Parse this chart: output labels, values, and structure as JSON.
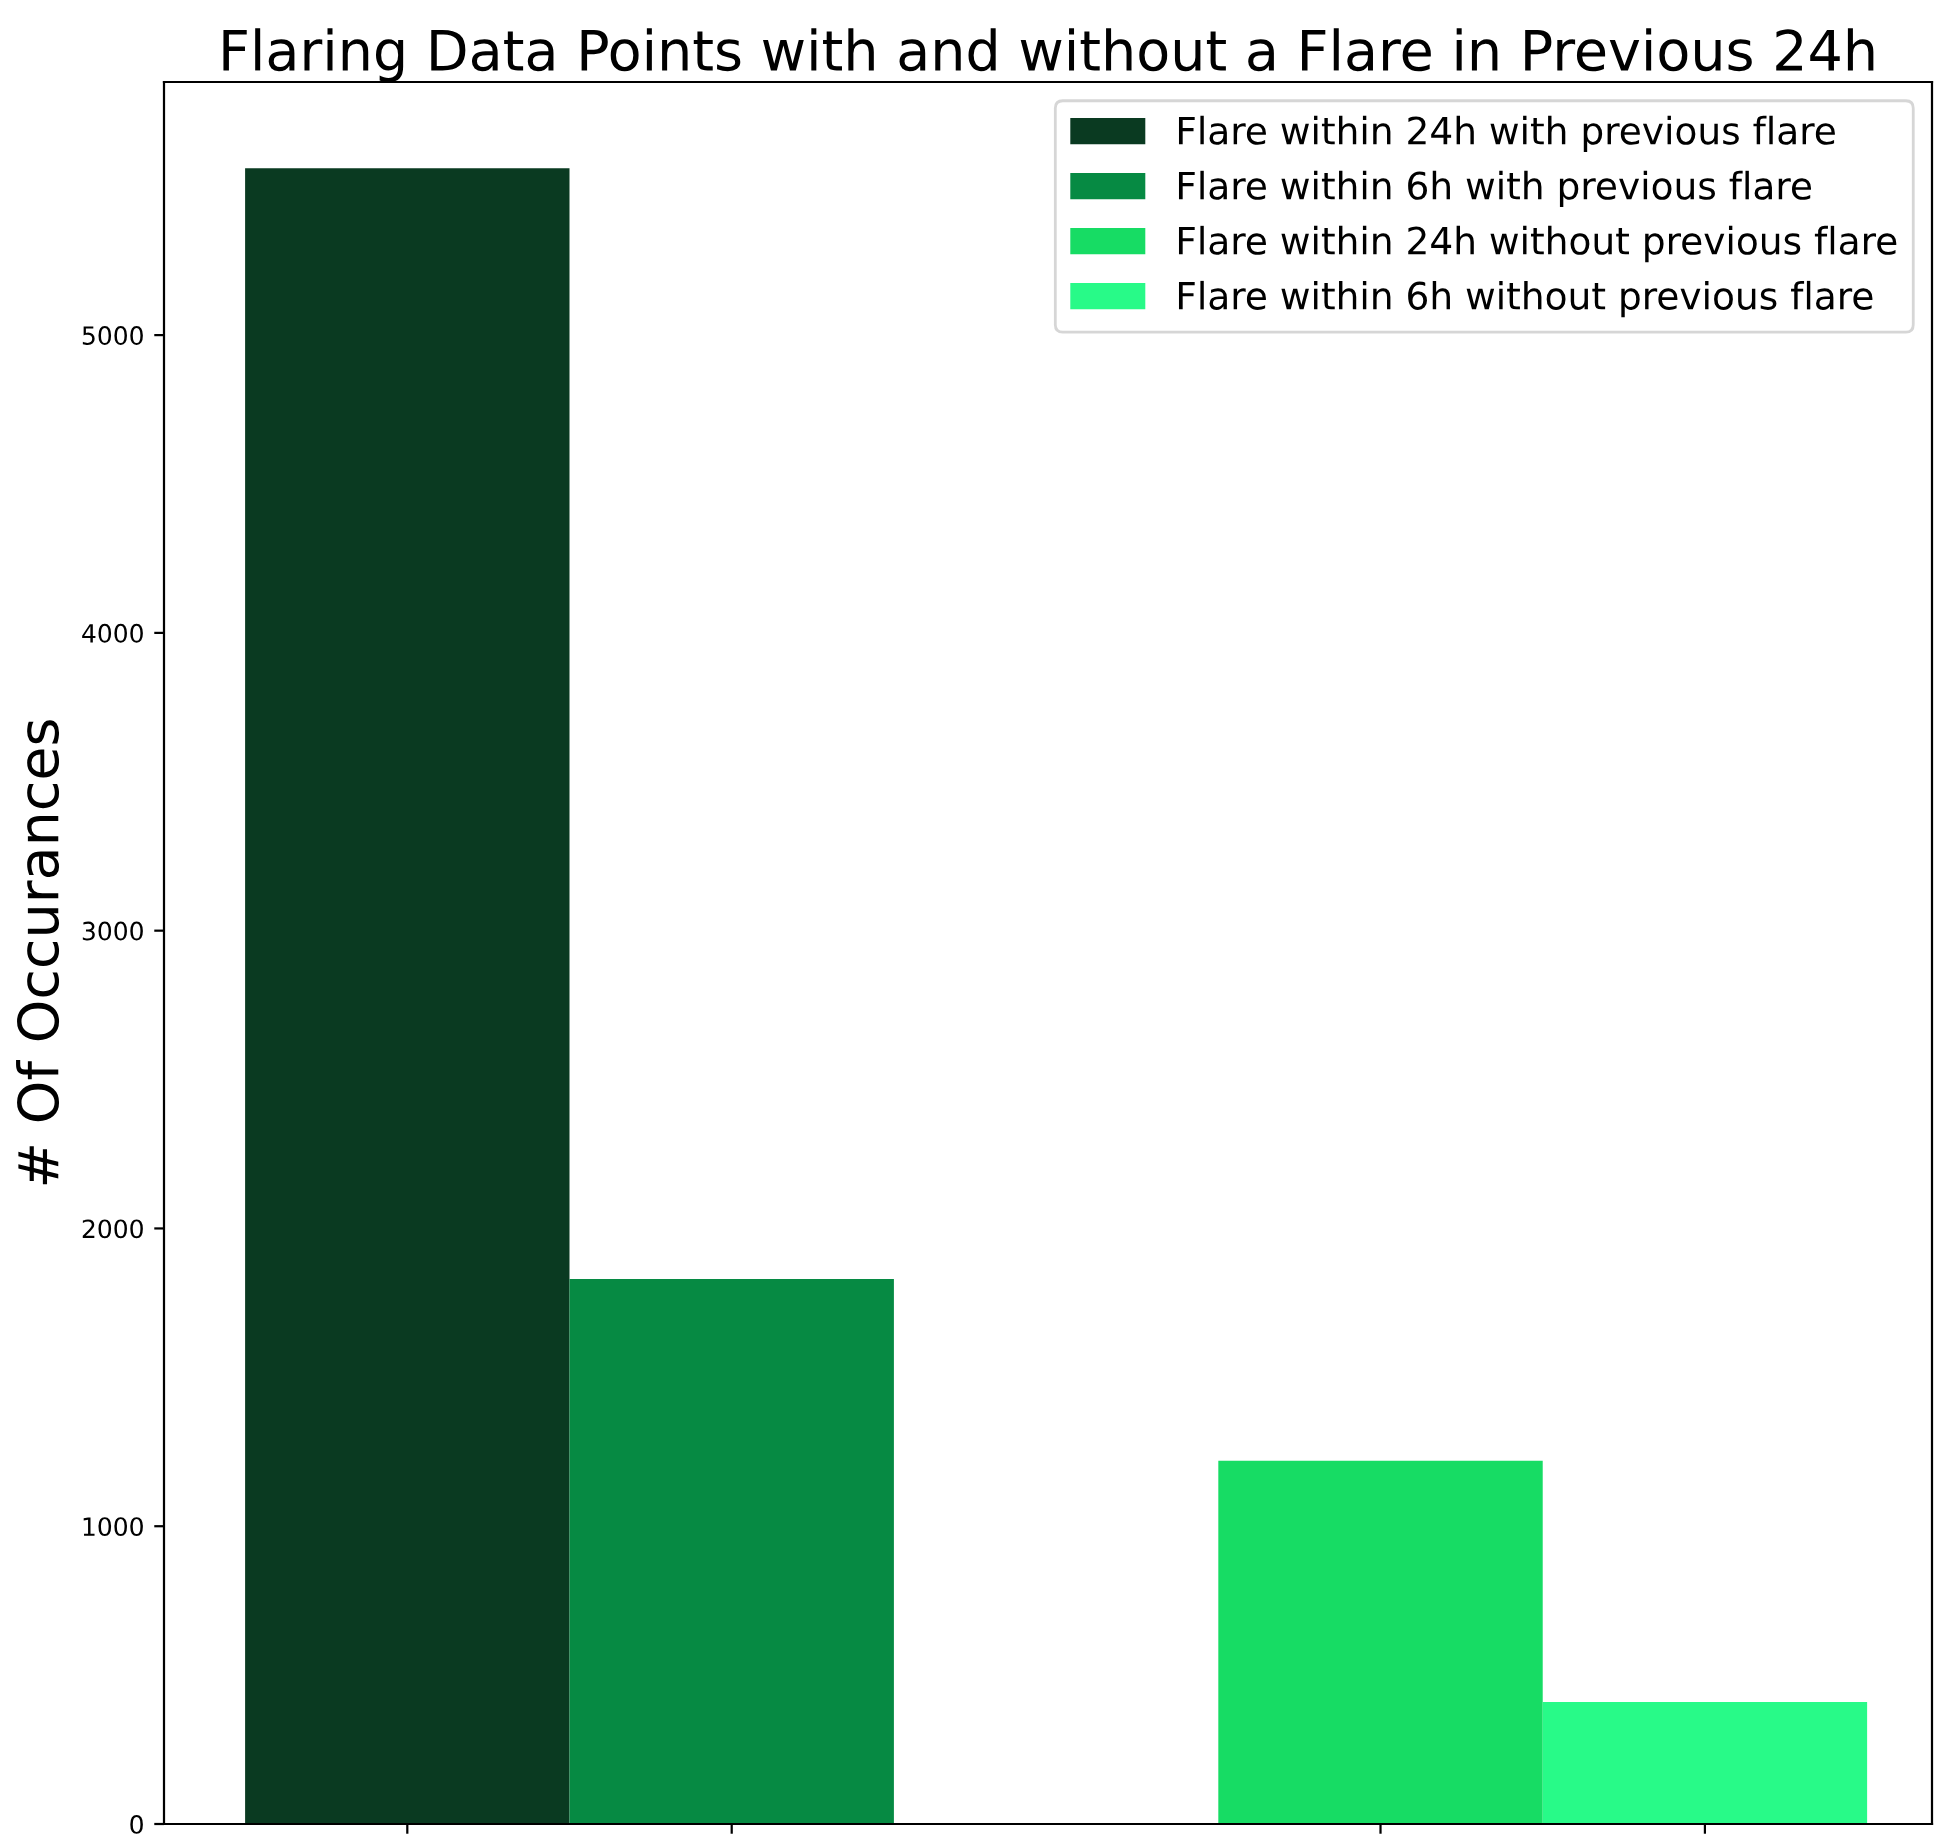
{
  "chart_data": {
    "type": "bar",
    "title": "Flaring Data Points with and without a Flare in Previous 24h",
    "ylabel": "# Of Occurances",
    "categories": [
      null,
      null,
      null,
      null,
      null
    ],
    "series": [
      {
        "name": "Flare within 24h with previous flare",
        "color": "#0a3a21",
        "values": [
          5560,
          null,
          null,
          null,
          null
        ]
      },
      {
        "name": "Flare within 6h with previous flare",
        "color": "#068a43",
        "values": [
          null,
          1830,
          null,
          null,
          null
        ]
      },
      {
        "name": "Flare within 24h without previous flare",
        "color": "#17dc64",
        "values": [
          null,
          null,
          null,
          1220,
          null
        ]
      },
      {
        "name": "Flare within 6h without previous flare",
        "color": "#28fa88",
        "values": [
          null,
          null,
          null,
          null,
          410
        ]
      }
    ],
    "ylim": [
      0,
      5850
    ],
    "yticks": [
      0,
      1000,
      2000,
      3000,
      4000,
      5000
    ],
    "legend": "top right"
  }
}
